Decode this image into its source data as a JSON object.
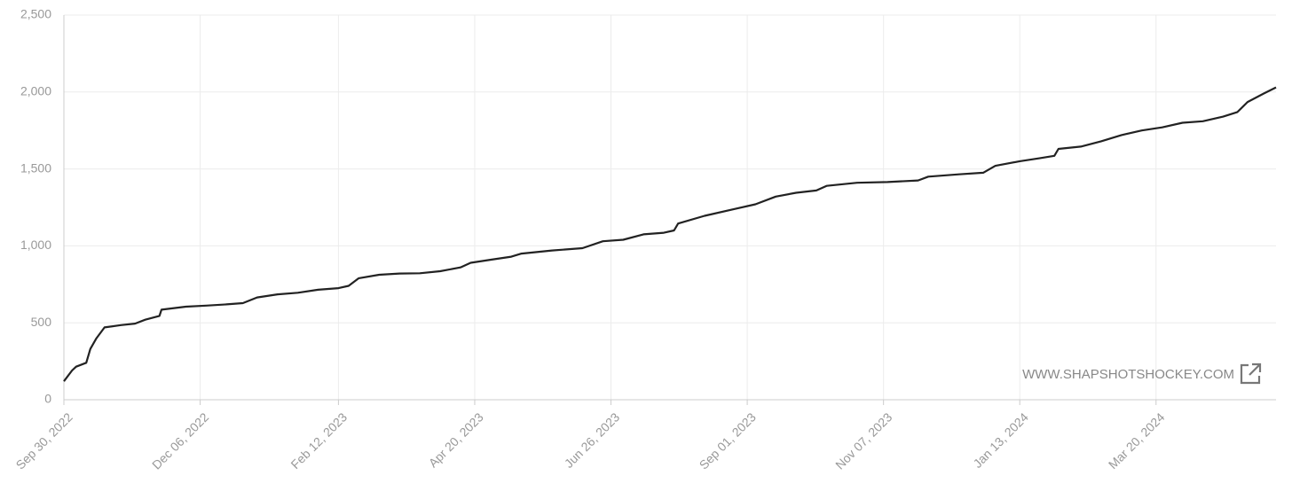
{
  "chart_data": {
    "type": "line",
    "watermark": "WWW.SHAPSHOTSHOCKEY.COM",
    "x": [
      "2022-09-30",
      "2022-10-04",
      "2022-10-06",
      "2022-10-11",
      "2022-10-13",
      "2022-10-16",
      "2022-10-20",
      "2022-10-28",
      "2022-11-04",
      "2022-11-09",
      "2022-11-16",
      "2022-11-17",
      "2022-11-29",
      "2022-12-09",
      "2022-12-19",
      "2022-12-27",
      "2023-01-03",
      "2023-01-13",
      "2023-01-23",
      "2023-02-02",
      "2023-02-12",
      "2023-02-17",
      "2023-02-22",
      "2023-03-04",
      "2023-03-14",
      "2023-03-24",
      "2023-04-03",
      "2023-04-13",
      "2023-04-18",
      "2023-04-28",
      "2023-05-08",
      "2023-05-13",
      "2023-05-28",
      "2023-06-12",
      "2023-06-22",
      "2023-07-02",
      "2023-07-12",
      "2023-07-22",
      "2023-07-27",
      "2023-07-29",
      "2023-08-11",
      "2023-08-26",
      "2023-09-05",
      "2023-09-15",
      "2023-09-25",
      "2023-10-05",
      "2023-10-10",
      "2023-10-25",
      "2023-11-09",
      "2023-11-24",
      "2023-11-29",
      "2023-12-14",
      "2023-12-26",
      "2024-01-01",
      "2024-01-13",
      "2024-01-23",
      "2024-01-30",
      "2024-02-01",
      "2024-02-12",
      "2024-02-22",
      "2024-03-03",
      "2024-03-13",
      "2024-03-23",
      "2024-04-02",
      "2024-04-12",
      "2024-04-22",
      "2024-04-29",
      "2024-05-04",
      "2024-05-12",
      "2024-05-18"
    ],
    "series": [
      {
        "color": "#222222",
        "values": [
          120,
          190,
          215,
          240,
          330,
          400,
          470,
          485,
          495,
          520,
          545,
          585,
          605,
          612,
          620,
          628,
          665,
          685,
          695,
          715,
          725,
          740,
          790,
          812,
          820,
          822,
          835,
          860,
          890,
          910,
          930,
          950,
          970,
          985,
          1030,
          1040,
          1075,
          1085,
          1100,
          1145,
          1195,
          1240,
          1270,
          1320,
          1345,
          1360,
          1390,
          1410,
          1415,
          1425,
          1450,
          1465,
          1475,
          1520,
          1550,
          1570,
          1585,
          1630,
          1645,
          1680,
          1720,
          1750,
          1770,
          1800,
          1810,
          1840,
          1870,
          1935,
          1990,
          2030
        ]
      }
    ],
    "xlim": [
      "2022-09-30",
      "2024-05-18"
    ],
    "xticks": [
      {
        "value": "2022-09-30",
        "label": "Sep 30, 2022"
      },
      {
        "value": "2022-12-06",
        "label": "Dec 06, 2022"
      },
      {
        "value": "2023-02-12",
        "label": "Feb 12, 2023"
      },
      {
        "value": "2023-04-20",
        "label": "Apr 20, 2023"
      },
      {
        "value": "2023-06-26",
        "label": "Jun 26, 2023"
      },
      {
        "value": "2023-09-01",
        "label": "Sep 01, 2023"
      },
      {
        "value": "2023-11-07",
        "label": "Nov 07, 2023"
      },
      {
        "value": "2024-01-13",
        "label": "Jan 13, 2024"
      },
      {
        "value": "2024-03-20",
        "label": "Mar 20, 2024"
      }
    ],
    "ylim": [
      0,
      2500
    ],
    "yticks": [
      0,
      500,
      {
        "value": 1000,
        "label": "1,000"
      },
      {
        "value": 1500,
        "label": "1,500"
      },
      {
        "value": 2000,
        "label": "2,000"
      },
      {
        "value": 2500,
        "label": "2,500"
      }
    ],
    "grid": true
  }
}
